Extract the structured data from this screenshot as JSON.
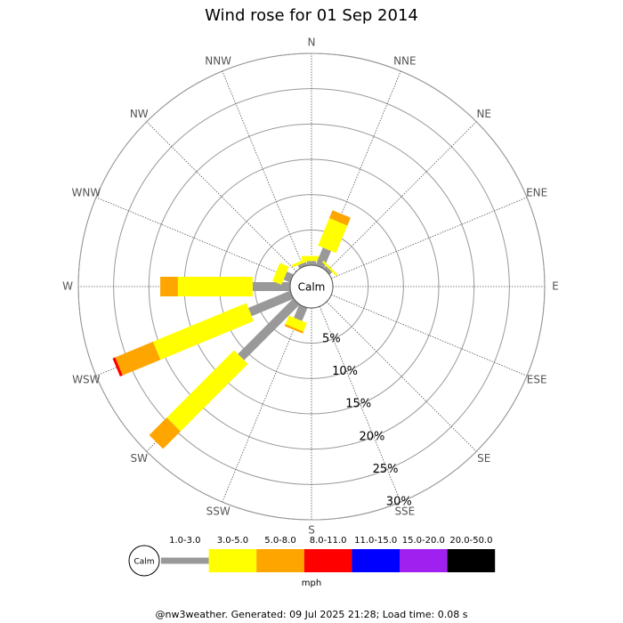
{
  "chart_data": {
    "type": "windrose",
    "title": "Wind rose for 01 Sep 2014",
    "directions": [
      "N",
      "NNE",
      "NE",
      "ENE",
      "E",
      "ESE",
      "SE",
      "SSE",
      "S",
      "SSW",
      "SW",
      "WSW",
      "W",
      "WNW",
      "NW",
      "NNW"
    ],
    "calm_label": "Calm",
    "legend_title": "mph",
    "rlim": [
      0,
      30
    ],
    "rticks": [
      {
        "value": 5,
        "label": "5%"
      },
      {
        "value": 10,
        "label": "10%"
      },
      {
        "value": 15,
        "label": "15%"
      },
      {
        "value": 20,
        "label": "20%"
      },
      {
        "value": 25,
        "label": "25%"
      },
      {
        "value": 30,
        "label": "30%"
      }
    ],
    "series": [
      {
        "name": "1.0-3.0",
        "color": "#999999",
        "values": [
          0.6,
          2.7,
          0.5,
          0,
          0,
          0,
          0,
          0,
          0,
          2.0,
          11.1,
          6.4,
          5.3,
          1.0,
          0,
          0.5
        ]
      },
      {
        "name": "3.0-5.0",
        "color": "#ffff00",
        "values": [
          0.7,
          4.2,
          0.3,
          0,
          0,
          0,
          0,
          0,
          0,
          1.3,
          13.5,
          14.3,
          10.6,
          1.4,
          0,
          0.4
        ]
      },
      {
        "name": "5.0-8.0",
        "color": "#ffa500",
        "values": [
          0,
          1.2,
          0,
          0,
          0,
          0,
          0,
          0,
          0,
          0.3,
          3.5,
          5.8,
          2.5,
          0,
          0,
          0
        ]
      },
      {
        "name": "8.0-11.0",
        "color": "#ff0000",
        "values": [
          0,
          0,
          0,
          0,
          0,
          0,
          0,
          0,
          0,
          0,
          0,
          0.4,
          0,
          0,
          0,
          0
        ]
      },
      {
        "name": "11.0-15.0",
        "color": "#0000ff",
        "values": [
          0,
          0,
          0,
          0,
          0,
          0,
          0,
          0,
          0,
          0,
          0,
          0,
          0,
          0,
          0,
          0
        ]
      },
      {
        "name": "15.0-20.0",
        "color": "#a020f0",
        "values": [
          0,
          0,
          0,
          0,
          0,
          0,
          0,
          0,
          0,
          0,
          0,
          0,
          0,
          0,
          0,
          0
        ]
      },
      {
        "name": "20.0-50.0",
        "color": "#000000",
        "values": [
          0,
          0,
          0,
          0,
          0,
          0,
          0,
          0,
          0,
          0,
          0,
          0,
          0,
          0,
          0,
          0
        ]
      }
    ]
  },
  "footer": "@nw3weather. Generated: 09 Jul 2025 21:28; Load time: 0.08 s"
}
